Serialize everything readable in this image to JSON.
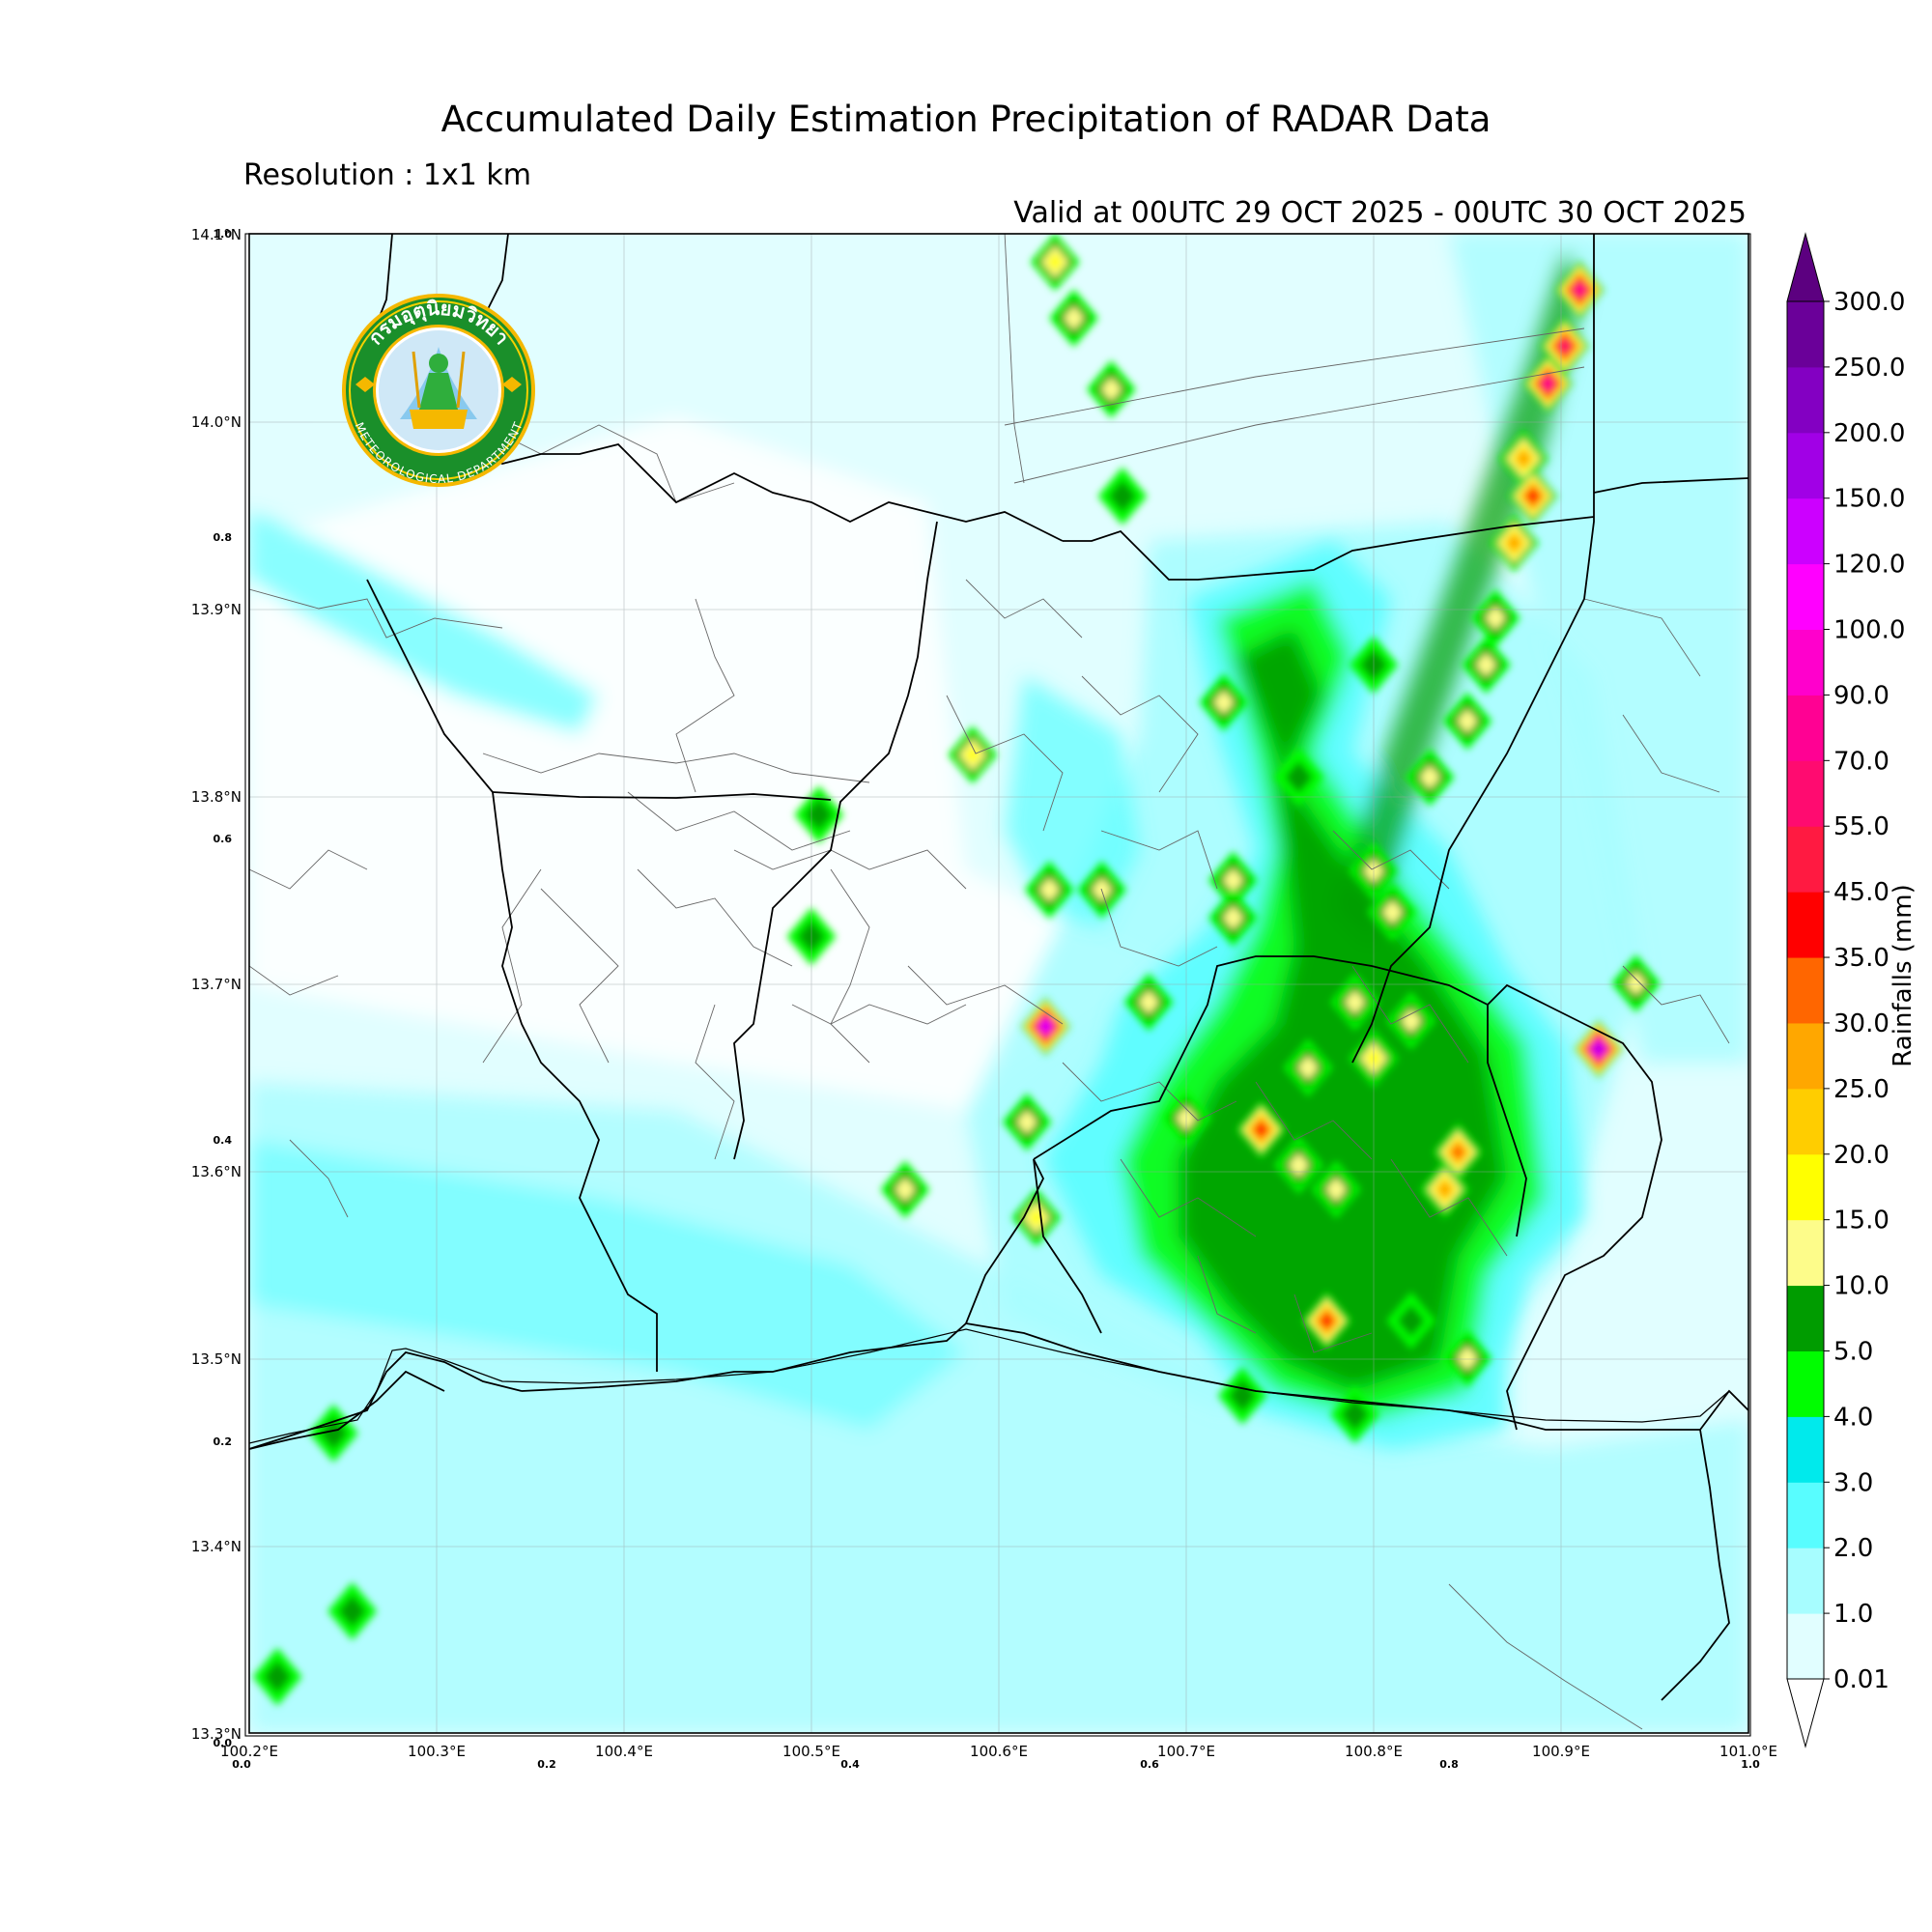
{
  "header": {
    "title": "Accumulated Daily Estimation Precipitation of RADAR Data",
    "resolution": "Resolution : 1x1 km",
    "valid": "Valid at 00UTC 29 OCT 2025 - 00UTC 30 OCT 2025"
  },
  "logo": {
    "text_top": "กรมอุตุนิยมวิทยา",
    "text_bottom": "METEOROLOGICAL DEPARTMENT"
  },
  "axes": {
    "lat_labels": [
      "14.1°N",
      "14.0°N",
      "13.9°N",
      "13.8°N",
      "13.7°N",
      "13.6°N",
      "13.5°N",
      "13.4°N",
      "13.3°N"
    ],
    "lon_labels": [
      "100.2°E",
      "100.3°E",
      "100.4°E",
      "100.5°E",
      "100.6°E",
      "100.7°E",
      "100.8°E",
      "100.9°E",
      "101.0°E"
    ],
    "lat_range": [
      13.3,
      14.1
    ],
    "lon_range": [
      100.2,
      101.0
    ],
    "inner_left_labels": [
      "1.0",
      "0.8",
      "0.6",
      "0.4",
      "0.2",
      "0.0"
    ],
    "inner_bottom_labels": [
      "0.0",
      "0.2",
      "0.4",
      "0.6",
      "0.8",
      "1.0"
    ]
  },
  "colorbar": {
    "label": "Rainfalls (mm)",
    "levels": [
      "0.01",
      "1.0",
      "2.0",
      "3.0",
      "4.0",
      "5.0",
      "10.0",
      "15.0",
      "20.0",
      "25.0",
      "30.0",
      "35.0",
      "45.0",
      "55.0",
      "70.0",
      "90.0",
      "100.0",
      "120.0",
      "150.0",
      "200.0",
      "250.0",
      "300.0"
    ],
    "colors": [
      "#e1feff",
      "#a7fdff",
      "#58fdff",
      "#00eaec",
      "#00fd00",
      "#009c00",
      "#fdfc8a",
      "#ffff00",
      "#ffcd00",
      "#ffa700",
      "#ff6600",
      "#ff0000",
      "#ff1a41",
      "#ff0b70",
      "#ff0193",
      "#ff00cc",
      "#ff00ff",
      "#cc00ff",
      "#a100e6",
      "#8300c2",
      "#6a0099"
    ],
    "extend_low": "#ffffff",
    "extend_high": "#5c0080"
  },
  "rain_cells": [
    {
      "lon": 100.55,
      "lat": 13.59,
      "mm": 12
    },
    {
      "lon": 100.62,
      "lat": 13.575,
      "mm": 18
    },
    {
      "lon": 100.615,
      "lat": 13.626,
      "mm": 14
    },
    {
      "lon": 100.625,
      "lat": 13.677,
      "mm": 120
    },
    {
      "lon": 100.586,
      "lat": 13.822,
      "mm": 18
    },
    {
      "lon": 100.5,
      "lat": 13.725,
      "mm": 6
    },
    {
      "lon": 100.504,
      "lat": 13.79,
      "mm": 6
    },
    {
      "lon": 100.72,
      "lat": 13.85,
      "mm": 12
    },
    {
      "lon": 100.76,
      "lat": 13.81,
      "mm": 6
    },
    {
      "lon": 100.8,
      "lat": 13.87,
      "mm": 8
    },
    {
      "lon": 100.81,
      "lat": 13.738,
      "mm": 14
    },
    {
      "lon": 100.8,
      "lat": 13.76,
      "mm": 12
    },
    {
      "lon": 100.8,
      "lat": 13.66,
      "mm": 15
    },
    {
      "lon": 100.79,
      "lat": 13.69,
      "mm": 12
    },
    {
      "lon": 100.765,
      "lat": 13.655,
      "mm": 14
    },
    {
      "lon": 100.74,
      "lat": 13.622,
      "mm": 40
    },
    {
      "lon": 100.7,
      "lat": 13.628,
      "mm": 12
    },
    {
      "lon": 100.845,
      "lat": 13.61,
      "mm": 30
    },
    {
      "lon": 100.838,
      "lat": 13.59,
      "mm": 25
    },
    {
      "lon": 100.82,
      "lat": 13.68,
      "mm": 14
    },
    {
      "lon": 100.775,
      "lat": 13.52,
      "mm": 40
    },
    {
      "lon": 100.82,
      "lat": 13.52,
      "mm": 7
    },
    {
      "lon": 100.85,
      "lat": 13.5,
      "mm": 12
    },
    {
      "lon": 100.79,
      "lat": 13.47,
      "mm": 7
    },
    {
      "lon": 100.73,
      "lat": 13.48,
      "mm": 6
    },
    {
      "lon": 100.92,
      "lat": 13.665,
      "mm": 150
    },
    {
      "lon": 100.94,
      "lat": 13.7,
      "mm": 14
    },
    {
      "lon": 100.875,
      "lat": 13.935,
      "mm": 25
    },
    {
      "lon": 100.865,
      "lat": 13.895,
      "mm": 14
    },
    {
      "lon": 100.88,
      "lat": 13.98,
      "mm": 25
    },
    {
      "lon": 100.885,
      "lat": 13.96,
      "mm": 35
    },
    {
      "lon": 100.893,
      "lat": 14.02,
      "mm": 70
    },
    {
      "lon": 100.902,
      "lat": 14.04,
      "mm": 60
    },
    {
      "lon": 100.91,
      "lat": 14.07,
      "mm": 80
    },
    {
      "lon": 100.86,
      "lat": 13.87,
      "mm": 14
    },
    {
      "lon": 100.85,
      "lat": 13.84,
      "mm": 14
    },
    {
      "lon": 100.83,
      "lat": 13.81,
      "mm": 14
    },
    {
      "lon": 100.63,
      "lat": 14.085,
      "mm": 15
    },
    {
      "lon": 100.64,
      "lat": 14.055,
      "mm": 14
    },
    {
      "lon": 100.66,
      "lat": 14.017,
      "mm": 14
    },
    {
      "lon": 100.666,
      "lat": 13.96,
      "mm": 6
    },
    {
      "lon": 100.68,
      "lat": 13.69,
      "mm": 14
    },
    {
      "lon": 100.725,
      "lat": 13.755,
      "mm": 14
    },
    {
      "lon": 100.725,
      "lat": 13.735,
      "mm": 12
    },
    {
      "lon": 100.655,
      "lat": 13.75,
      "mm": 12
    },
    {
      "lon": 100.627,
      "lat": 13.75,
      "mm": 12
    },
    {
      "lon": 100.76,
      "lat": 13.603,
      "mm": 12
    },
    {
      "lon": 100.78,
      "lat": 13.59,
      "mm": 12
    },
    {
      "lon": 100.215,
      "lat": 13.33,
      "mm": 7
    },
    {
      "lon": 100.255,
      "lat": 13.365,
      "mm": 7
    },
    {
      "lon": 100.245,
      "lat": 13.46,
      "mm": 7
    }
  ]
}
